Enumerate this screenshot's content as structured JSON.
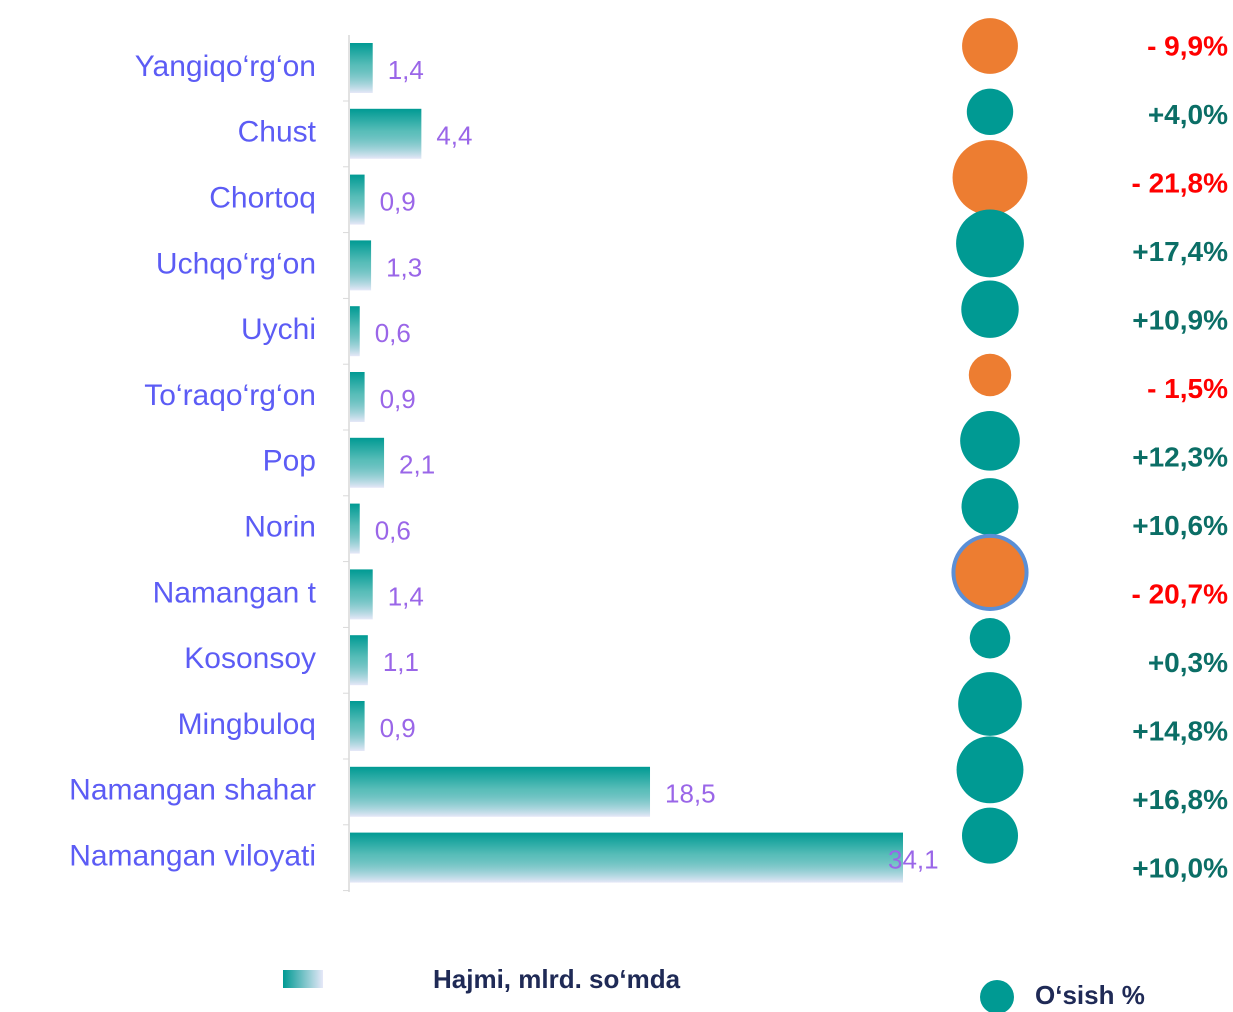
{
  "chart_data": {
    "type": "bar",
    "categories": [
      "Yangiqo‘rg‘on",
      "Chust",
      "Chortoq",
      "Uchqo‘rg‘on",
      "Uychi",
      "To‘raqo‘rg‘on",
      "Pop",
      "Norin",
      "Namangan t",
      "Kosonsoy",
      "Mingbuloq",
      "Namangan shahar",
      "Namangan viloyati"
    ],
    "series": [
      {
        "name": "Hajmi, mlrd. so‘mda",
        "color": "#009a93",
        "values": [
          1.4,
          4.4,
          0.9,
          1.3,
          0.6,
          0.9,
          2.1,
          0.6,
          1.4,
          1.1,
          0.9,
          18.5,
          34.1
        ],
        "value_labels": [
          "1,4",
          "4,4",
          "0,9",
          "1,3",
          "0,6",
          "0,9",
          "2,1",
          "0,6",
          "1,4",
          "1,1",
          "0,9",
          "18,5",
          "34,1"
        ]
      },
      {
        "name": "O‘sish %",
        "type": "bubble",
        "color": "#009a93",
        "negative_color": "#ed7d31",
        "label_color": "#0b6e66",
        "negative_label_color": "#ff0000",
        "values": [
          -9.9,
          4.0,
          -21.8,
          17.4,
          10.9,
          -1.5,
          12.3,
          10.6,
          -20.7,
          0.3,
          14.8,
          16.8,
          10.0
        ],
        "value_labels": [
          "- 9,9%",
          "+4,0%",
          "- 21,8%",
          "+17,4%",
          "+10,9%",
          "- 1,5%",
          "+12,3%",
          "+10,6%",
          "- 20,7%",
          "+0,3%",
          "+14,8%",
          "+16,8%",
          "+10,0%"
        ]
      }
    ]
  }
}
